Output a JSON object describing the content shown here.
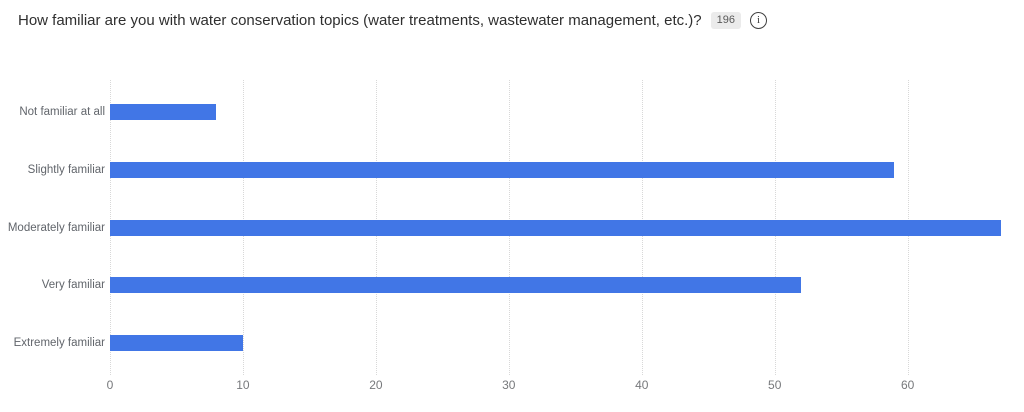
{
  "header": {
    "title": "How familiar are you with water conservation topics (water treatments, wastewater management, etc.)?",
    "response_count": "196",
    "info_glyph": "i"
  },
  "colors": {
    "bar": "#4176E6",
    "gridline": "#D8D8D8",
    "title_text": "#2F2F2F",
    "badge_bg": "#EBEBEB",
    "badge_text": "#595959",
    "category_label": "#61656B",
    "tick_label": "#77797C"
  },
  "chart_data": {
    "type": "bar",
    "orientation": "horizontal",
    "title": "How familiar are you with water conservation topics (water treatments, wastewater management, etc.)?",
    "categories": [
      "Not familiar at all",
      "Slightly familiar",
      "Moderately familiar",
      "Very familiar",
      "Extremely familiar"
    ],
    "values": [
      8,
      59,
      67,
      52,
      10
    ],
    "total_responses": 196,
    "xlabel": "",
    "ylabel": "",
    "xlim": [
      0,
      68
    ],
    "xticks": [
      0,
      10,
      20,
      30,
      40,
      50,
      60
    ],
    "grid": "vertical-dotted",
    "legend": "none"
  }
}
